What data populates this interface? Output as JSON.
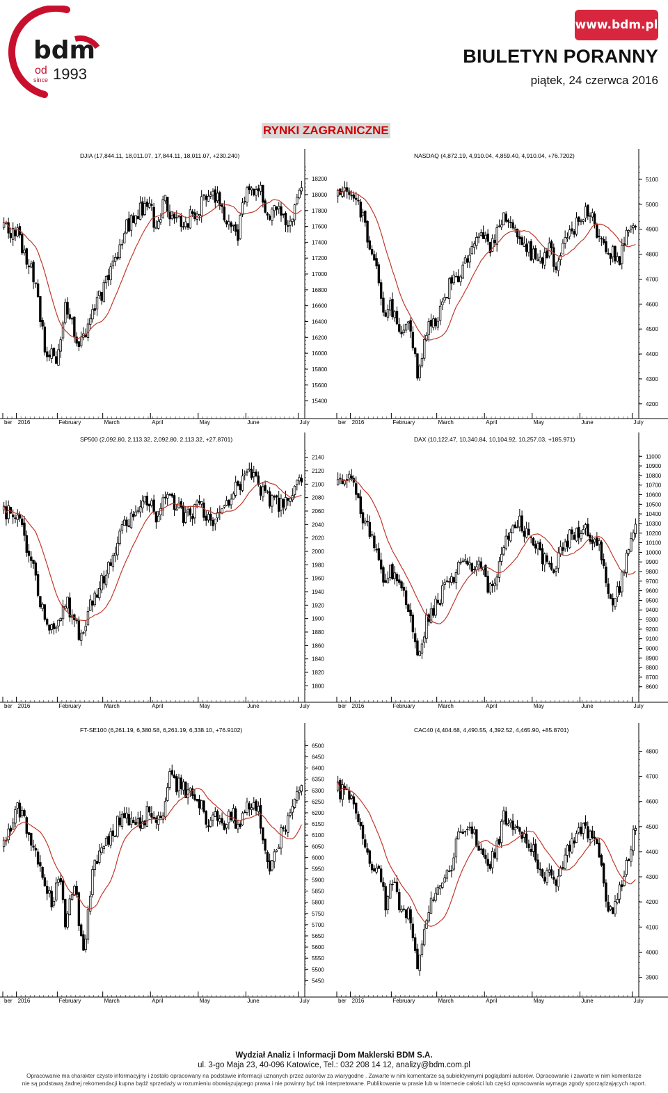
{
  "header": {
    "logo_text": "bdm",
    "logo_od": "od",
    "logo_since": "since",
    "logo_year": "1993",
    "www": "www.bdm.pl",
    "title": "BIULETYN PORANNY",
    "date": "piątek, 24 czerwca 2016",
    "section": "RYNKI ZAGRANICZNE"
  },
  "colors": {
    "brand_red": "#d7263d",
    "ma_line": "#c0392b",
    "candles": "#000000"
  },
  "chart_data": [
    {
      "type": "candlestick",
      "title": "DJIA (17,844.11, 18,011.07, 17,844.11, 18,011.07, +230.240)",
      "x_ticks": [
        "ber",
        "2016",
        "February",
        "March",
        "April",
        "May",
        "June",
        "July"
      ],
      "y_ticks": [
        "18200",
        "18000",
        "17800",
        "17600",
        "17400",
        "17200",
        "17000",
        "16800",
        "16600",
        "16400",
        "16200",
        "16000",
        "15800",
        "15600",
        "15400"
      ],
      "ylim": [
        15300,
        18350
      ],
      "y_axis": "right",
      "anchors": [
        [
          0,
          17600
        ],
        [
          6,
          17500
        ],
        [
          14,
          16900
        ],
        [
          18,
          16100
        ],
        [
          23,
          15850
        ],
        [
          27,
          16600
        ],
        [
          29,
          16400
        ],
        [
          34,
          16100
        ],
        [
          39,
          16500
        ],
        [
          44,
          16800
        ],
        [
          50,
          17250
        ],
        [
          53,
          17550
        ],
        [
          58,
          17750
        ],
        [
          64,
          17900
        ],
        [
          67,
          17500
        ],
        [
          71,
          17950
        ],
        [
          73,
          17800
        ],
        [
          80,
          17650
        ],
        [
          86,
          17850
        ],
        [
          92,
          18050
        ],
        [
          96,
          17800
        ],
        [
          103,
          17450
        ],
        [
          106,
          18000
        ],
        [
          112,
          18150
        ],
        [
          116,
          17750
        ],
        [
          120,
          17800
        ],
        [
          124,
          17650
        ],
        [
          127,
          17750
        ],
        [
          130,
          18000
        ]
      ],
      "ma_period": 15
    },
    {
      "type": "candlestick",
      "title": "NASDAQ (4,872.19, 4,910.04, 4,859.40, 4,910.04, +76.7202)",
      "x_ticks": [
        "ber",
        "2016",
        "February",
        "March",
        "April",
        "May",
        "June",
        "July"
      ],
      "y_ticks": [
        "5100",
        "5000",
        "4900",
        "4800",
        "4700",
        "4600",
        "4500",
        "4400",
        "4300",
        "4200"
      ],
      "ylim": [
        4180,
        5150
      ],
      "y_axis": "right",
      "anchors": [
        [
          0,
          5040
        ],
        [
          6,
          5050
        ],
        [
          9,
          5000
        ],
        [
          14,
          4850
        ],
        [
          18,
          4700
        ],
        [
          21,
          4530
        ],
        [
          23,
          4600
        ],
        [
          27,
          4500
        ],
        [
          31,
          4500
        ],
        [
          35,
          4330
        ],
        [
          39,
          4480
        ],
        [
          44,
          4560
        ],
        [
          50,
          4690
        ],
        [
          53,
          4720
        ],
        [
          58,
          4800
        ],
        [
          64,
          4880
        ],
        [
          67,
          4800
        ],
        [
          71,
          4920
        ],
        [
          73,
          4950
        ],
        [
          80,
          4850
        ],
        [
          86,
          4800
        ],
        [
          90,
          4750
        ],
        [
          93,
          4830
        ],
        [
          96,
          4760
        ],
        [
          103,
          4900
        ],
        [
          108,
          4960
        ],
        [
          112,
          4950
        ],
        [
          116,
          4850
        ],
        [
          120,
          4800
        ],
        [
          124,
          4790
        ],
        [
          127,
          4880
        ],
        [
          130,
          4910
        ]
      ],
      "ma_period": 15
    },
    {
      "type": "candlestick",
      "title": "SP500 (2,092.80, 2,113.32, 2,092.80, 2,113.32, +27.8701)",
      "x_ticks": [
        "ber",
        "2016",
        "February",
        "March",
        "April",
        "May",
        "June",
        "July"
      ],
      "y_ticks": [
        "2140",
        "2120",
        "2100",
        "2080",
        "2060",
        "2040",
        "2020",
        "2000",
        "1980",
        "1960",
        "1940",
        "1920",
        "1900",
        "1880",
        "1860",
        "1840",
        "1820",
        "1800"
      ],
      "ylim": [
        1790,
        2150
      ],
      "y_axis": "right",
      "anchors": [
        [
          0,
          2060
        ],
        [
          6,
          2050
        ],
        [
          14,
          1960
        ],
        [
          18,
          1900
        ],
        [
          23,
          1880
        ],
        [
          27,
          1930
        ],
        [
          29,
          1910
        ],
        [
          34,
          1870
        ],
        [
          39,
          1930
        ],
        [
          44,
          1960
        ],
        [
          50,
          2010
        ],
        [
          53,
          2040
        ],
        [
          58,
          2060
        ],
        [
          64,
          2080
        ],
        [
          67,
          2050
        ],
        [
          71,
          2090
        ],
        [
          73,
          2085
        ],
        [
          80,
          2050
        ],
        [
          86,
          2070
        ],
        [
          90,
          2045
        ],
        [
          96,
          2060
        ],
        [
          103,
          2100
        ],
        [
          108,
          2115
        ],
        [
          112,
          2100
        ],
        [
          116,
          2080
        ],
        [
          120,
          2070
        ],
        [
          124,
          2075
        ],
        [
          127,
          2090
        ],
        [
          130,
          2113
        ]
      ],
      "ma_period": 15
    },
    {
      "type": "candlestick",
      "title": "DAX (10,122.47, 10,340.84, 10,104.92, 10,257.03, +185.971)",
      "x_ticks": [
        "ber",
        "2016",
        "February",
        "March",
        "April",
        "May",
        "June",
        "July"
      ],
      "y_ticks": [
        "11000",
        "10900",
        "10800",
        "10700",
        "10600",
        "10500",
        "10400",
        "10300",
        "10200",
        "10100",
        "10000",
        "9900",
        "9800",
        "9700",
        "9600",
        "9500",
        "9400",
        "9300",
        "9200",
        "9100",
        "9000",
        "8900",
        "8800",
        "8700",
        "8600"
      ],
      "ylim": [
        8540,
        11060
      ],
      "y_axis": "right",
      "anchors": [
        [
          0,
          10700
        ],
        [
          6,
          10850
        ],
        [
          9,
          10500
        ],
        [
          14,
          10200
        ],
        [
          18,
          9900
        ],
        [
          21,
          9700
        ],
        [
          23,
          9800
        ],
        [
          27,
          9650
        ],
        [
          31,
          9400
        ],
        [
          35,
          8900
        ],
        [
          39,
          9300
        ],
        [
          44,
          9500
        ],
        [
          50,
          9700
        ],
        [
          53,
          9900
        ],
        [
          58,
          9900
        ],
        [
          64,
          9800
        ],
        [
          67,
          9600
        ],
        [
          71,
          9850
        ],
        [
          73,
          10100
        ],
        [
          80,
          10300
        ],
        [
          86,
          10100
        ],
        [
          90,
          9950
        ],
        [
          93,
          9800
        ],
        [
          96,
          9900
        ],
        [
          103,
          10200
        ],
        [
          108,
          10250
        ],
        [
          112,
          10150
        ],
        [
          116,
          10000
        ],
        [
          118,
          9700
        ],
        [
          120,
          9500
        ],
        [
          124,
          9600
        ],
        [
          127,
          9950
        ],
        [
          130,
          10257
        ]
      ],
      "ma_period": 15
    },
    {
      "type": "candlestick",
      "title": "FT-SE100 (6,261.19, 6,380.58, 6,261.19, 6,338.10, +76.9102)",
      "x_ticks": [
        "ber",
        "2016",
        "February",
        "March",
        "April",
        "May",
        "June",
        "July"
      ],
      "y_ticks": [
        "6500",
        "6450",
        "6400",
        "6350",
        "6300",
        "6250",
        "6200",
        "6150",
        "6100",
        "6050",
        "6000",
        "5950",
        "5900",
        "5850",
        "5800",
        "5750",
        "5700",
        "5650",
        "5600",
        "5550",
        "5500",
        "5450"
      ],
      "ylim": [
        5420,
        6520
      ],
      "y_axis": "right",
      "anchors": [
        [
          0,
          6050
        ],
        [
          6,
          6250
        ],
        [
          9,
          6150
        ],
        [
          14,
          6000
        ],
        [
          18,
          5850
        ],
        [
          21,
          5800
        ],
        [
          25,
          5900
        ],
        [
          27,
          5700
        ],
        [
          31,
          5900
        ],
        [
          35,
          5550
        ],
        [
          39,
          5950
        ],
        [
          44,
          6050
        ],
        [
          50,
          6150
        ],
        [
          53,
          6200
        ],
        [
          58,
          6150
        ],
        [
          64,
          6200
        ],
        [
          67,
          6150
        ],
        [
          71,
          6250
        ],
        [
          73,
          6350
        ],
        [
          80,
          6300
        ],
        [
          86,
          6250
        ],
        [
          90,
          6150
        ],
        [
          93,
          6200
        ],
        [
          96,
          6150
        ],
        [
          100,
          6200
        ],
        [
          103,
          6150
        ],
        [
          108,
          6250
        ],
        [
          112,
          6200
        ],
        [
          116,
          6000
        ],
        [
          118,
          5950
        ],
        [
          120,
          6050
        ],
        [
          124,
          6150
        ],
        [
          127,
          6250
        ],
        [
          130,
          6338
        ]
      ],
      "ma_period": 15
    },
    {
      "type": "candlestick",
      "title": "CAC40 (4,404.68, 4,490.55, 4,392.52, 4,465.90, +85.8701)",
      "x_ticks": [
        "ber",
        "2016",
        "February",
        "March",
        "April",
        "May",
        "June",
        "July"
      ],
      "y_ticks": [
        "4800",
        "4700",
        "4600",
        "4500",
        "4400",
        "4300",
        "4200",
        "4100",
        "4000",
        "3900"
      ],
      "ylim": [
        3860,
        4840
      ],
      "y_axis": "right",
      "anchors": [
        [
          0,
          4650
        ],
        [
          6,
          4600
        ],
        [
          9,
          4550
        ],
        [
          14,
          4350
        ],
        [
          18,
          4300
        ],
        [
          21,
          4200
        ],
        [
          23,
          4300
        ],
        [
          27,
          4200
        ],
        [
          31,
          4150
        ],
        [
          35,
          3950
        ],
        [
          39,
          4150
        ],
        [
          44,
          4250
        ],
        [
          50,
          4350
        ],
        [
          53,
          4450
        ],
        [
          58,
          4500
        ],
        [
          64,
          4400
        ],
        [
          67,
          4350
        ],
        [
          71,
          4450
        ],
        [
          73,
          4550
        ],
        [
          80,
          4500
        ],
        [
          86,
          4400
        ],
        [
          90,
          4300
        ],
        [
          93,
          4350
        ],
        [
          96,
          4300
        ],
        [
          103,
          4450
        ],
        [
          108,
          4500
        ],
        [
          112,
          4450
        ],
        [
          116,
          4350
        ],
        [
          118,
          4200
        ],
        [
          120,
          4150
        ],
        [
          124,
          4250
        ],
        [
          127,
          4350
        ],
        [
          130,
          4466
        ]
      ],
      "ma_period": 15
    }
  ],
  "footer": {
    "department": "Wydział Analiz i Informacji Dom Maklerski BDM  S.A.",
    "address": "ul. 3-go Maja 23, 40-096 Katowice, Tel.: 032 208 14 12, analizy@bdm.com.pl",
    "disclaimer_1": "Opracowanie  ma charakter czysto informacyjny i zostało opracowany na podstawie informacji uznanych przez autorów za wiarygodne . Zawarte w nim komentarze są subiektywnymi poglądami autorów. Opracowanie i zawarte w nim komentarze",
    "disclaimer_2": "nie są podstawą żadnej rekomendacji kupna bądź sprzedaży w rozumieniu obowiązującego prawa i nie powinny być tak interpretowane. Publikowanie w prasie lub w Internecie całości lub części opracowania wymaga zgody sporządzających raport."
  }
}
